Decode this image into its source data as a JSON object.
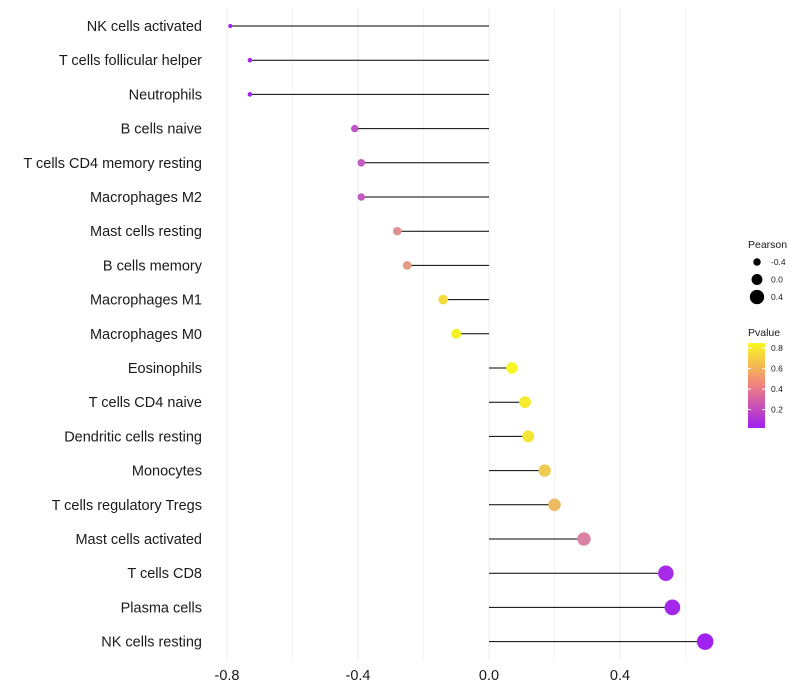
{
  "chart_data": {
    "type": "lollipop",
    "title": "",
    "xlabel": "",
    "ylabel": "",
    "xlim": [
      -0.86,
      0.73
    ],
    "x_ticks": [
      -0.8,
      -0.4,
      0.0,
      0.4
    ],
    "x_tick_labels": [
      "-0.8",
      "-0.4",
      "0.0",
      "0.4"
    ],
    "x_minor_gridlines": [
      -0.6,
      -0.2,
      0.2,
      0.6
    ],
    "grid": true,
    "categories": [
      "NK cells activated",
      "T cells follicular helper",
      "Neutrophils",
      "B cells naive",
      "T cells CD4 memory resting",
      "Macrophages M2",
      "Mast cells resting",
      "B cells memory",
      "Macrophages M1",
      "Macrophages M0",
      "Eosinophils",
      "T cells CD4 naive",
      "Dendritic cells resting",
      "Monocytes",
      "T cells regulatory  Tregs ",
      "Mast cells activated",
      "T cells CD8",
      "Plasma cells",
      "NK cells resting"
    ],
    "values": [
      -0.79,
      -0.73,
      -0.73,
      -0.41,
      -0.39,
      -0.39,
      -0.28,
      -0.25,
      -0.14,
      -0.1,
      0.07,
      0.11,
      0.12,
      0.17,
      0.2,
      0.29,
      0.54,
      0.56,
      0.66
    ],
    "pvalues": [
      0.02,
      0.03,
      0.03,
      0.22,
      0.25,
      0.25,
      0.45,
      0.5,
      0.75,
      0.82,
      0.85,
      0.8,
      0.78,
      0.68,
      0.62,
      0.4,
      0.06,
      0.05,
      0.02
    ],
    "size_legend": {
      "title": "Pearson",
      "values": [
        -0.4,
        0.0,
        0.4
      ],
      "labels": [
        "-0.4",
        "0.0",
        "0.4"
      ]
    },
    "color_legend": {
      "title": "Pvalue",
      "range": [
        0.02,
        0.85
      ],
      "ticks": [
        0.8,
        0.6,
        0.4,
        0.2
      ],
      "tick_labels": [
        "0.8",
        "0.6",
        "0.4",
        "0.2"
      ],
      "colors": [
        "#a020f0",
        "#f0f020"
      ]
    }
  }
}
